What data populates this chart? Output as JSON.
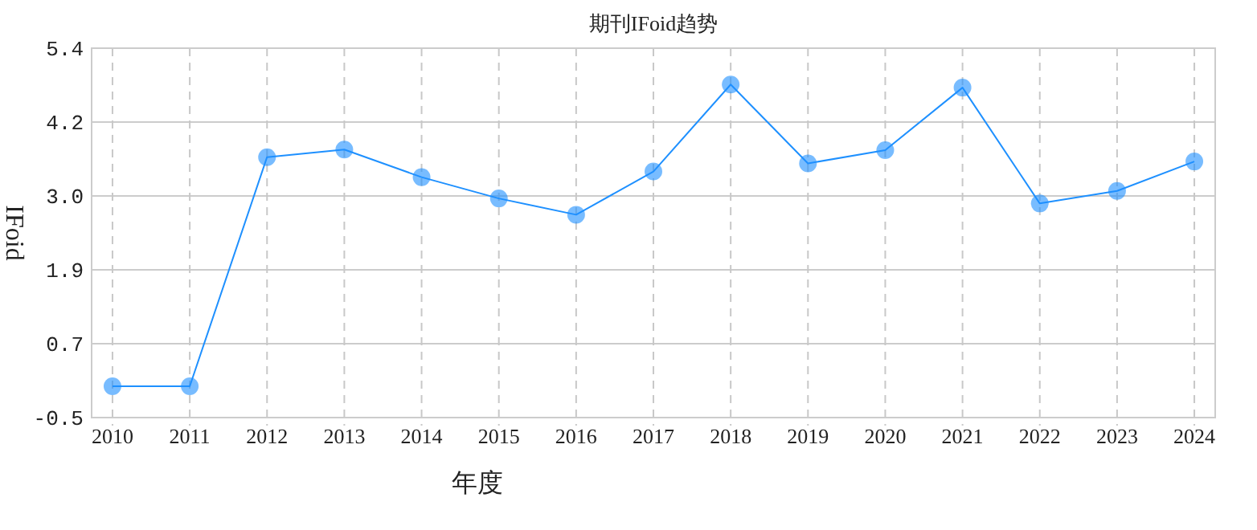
{
  "chart_data": {
    "type": "line",
    "title": "期刊IFoid趋势",
    "xlabel": "年度",
    "ylabel": "IFoid",
    "categories": [
      "2010",
      "2011",
      "2012",
      "2013",
      "2014",
      "2015",
      "2016",
      "2017",
      "2018",
      "2019",
      "2020",
      "2021",
      "2022",
      "2023",
      "2024"
    ],
    "series": [
      {
        "color": "#1e90ff",
        "values": [
          0,
          0,
          3.66,
          3.78,
          3.34,
          3.0,
          2.74,
          3.43,
          4.82,
          3.56,
          3.77,
          4.77,
          2.92,
          3.12,
          3.59
        ]
      }
    ],
    "ylim": [
      -0.5,
      5.4
    ],
    "yticks": [
      -0.5,
      {
        "value": 0.68,
        "label": "0.7"
      },
      {
        "value": 1.86,
        "label": "1.9"
      },
      {
        "value": 3.04,
        "label": "3.0"
      },
      {
        "value": 4.22,
        "label": "4.2"
      },
      5.4
    ],
    "grid": true,
    "marker": "circle",
    "line_style": "solid"
  }
}
